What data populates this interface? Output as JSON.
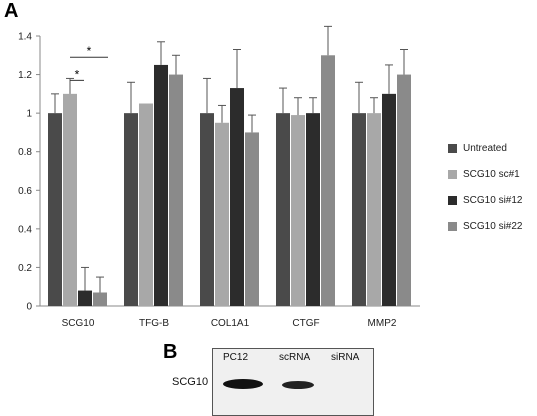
{
  "figure": {
    "panel_a_letter": "A",
    "panel_b_letter": "B"
  },
  "chart_data": {
    "type": "bar",
    "categories": [
      "SCG10",
      "TFG-B",
      "COL1A1",
      "CTGF",
      "MMP2"
    ],
    "ylim": [
      0,
      1.4
    ],
    "yticks": [
      "0",
      "0.2",
      "0.4",
      "0.6",
      "0.8",
      "1",
      "1.2",
      "1.4"
    ],
    "grid": false,
    "legend_position": "right",
    "series": [
      {
        "name": "Untreated",
        "color": "#4a4a4a",
        "values": [
          1.0,
          1.0,
          1.0,
          1.0,
          1.0
        ],
        "errors": [
          0.1,
          0.16,
          0.18,
          0.13,
          0.16
        ]
      },
      {
        "name": "SCG10 sc#1",
        "color": "#a8a8a8",
        "values": [
          1.1,
          1.05,
          0.95,
          0.99,
          1.0
        ],
        "errors": [
          0.08,
          0.0,
          0.09,
          0.09,
          0.08
        ]
      },
      {
        "name": "SCG10 si#12",
        "color": "#2c2c2c",
        "values": [
          0.08,
          1.25,
          1.13,
          1.0,
          1.1
        ],
        "errors": [
          0.12,
          0.12,
          0.2,
          0.08,
          0.15
        ]
      },
      {
        "name": "SCG10 si#22",
        "color": "#8a8a8a",
        "values": [
          0.07,
          1.2,
          0.9,
          1.3,
          1.2
        ],
        "errors": [
          0.08,
          0.1,
          0.09,
          0.15,
          0.13
        ]
      }
    ],
    "annotations": [
      {
        "text": "*",
        "from_series": 0,
        "to_series": 2,
        "category": 0
      },
      {
        "text": "*",
        "from_series": 1,
        "to_series": 1,
        "category": 0
      }
    ]
  },
  "blot": {
    "lanes": [
      "PC12",
      "scRNA",
      "siRNA"
    ],
    "row_label": "SCG10"
  }
}
